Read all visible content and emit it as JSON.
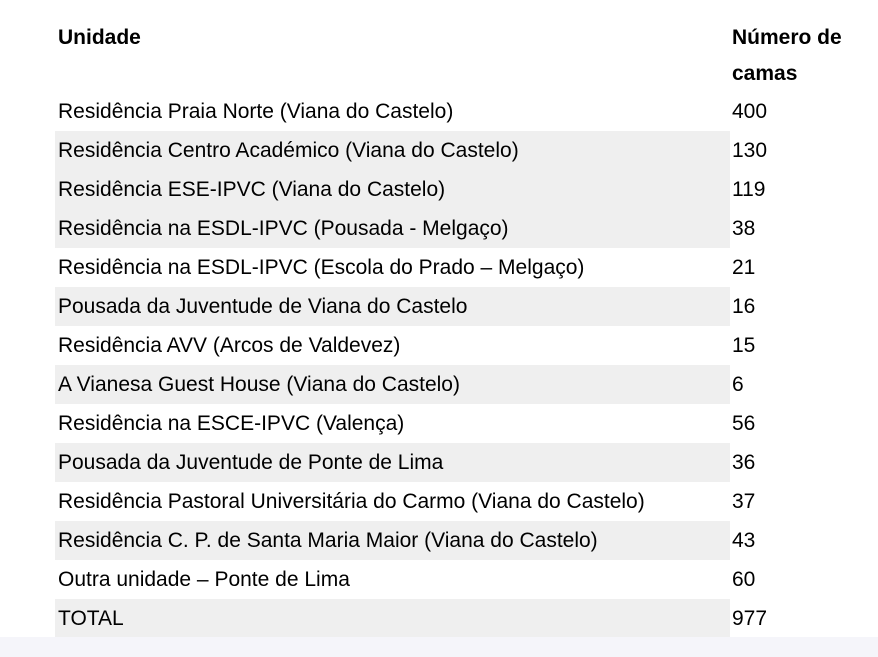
{
  "page": {
    "background_color": "#ffffff",
    "footer_strip_color": "#f5f5fa"
  },
  "table": {
    "headers": {
      "unit": "Unidade",
      "beds": "Número de camas"
    },
    "row_shade_color": "#efefef",
    "text_color": "#000000",
    "rows": [
      {
        "unit": "Residência Praia Norte (Viana do Castelo)",
        "beds": "400",
        "shaded": false
      },
      {
        "unit": "Residência Centro Académico (Viana do Castelo)",
        "beds": "130",
        "shaded": true
      },
      {
        "unit": "Residência ESE-IPVC (Viana do Castelo)",
        "beds": "119",
        "shaded": true
      },
      {
        "unit": "Residência na ESDL-IPVC (Pousada - Melgaço)",
        "beds": "38",
        "shaded": true
      },
      {
        "unit": "Residência na ESDL-IPVC (Escola do Prado – Melgaço)",
        "beds": "21",
        "shaded": false
      },
      {
        "unit": "Pousada da Juventude de Viana do Castelo",
        "beds": "16",
        "shaded": true
      },
      {
        "unit": "Residência AVV (Arcos de Valdevez)",
        "beds": "15",
        "shaded": false
      },
      {
        "unit": "A Vianesa Guest House (Viana do Castelo)",
        "beds": "6",
        "shaded": true
      },
      {
        "unit": "Residência na ESCE-IPVC (Valença)",
        "beds": "56",
        "shaded": false
      },
      {
        "unit": "Pousada da Juventude de Ponte de Lima",
        "beds": "36",
        "shaded": true
      },
      {
        "unit": "Residência Pastoral Universitária do Carmo (Viana do Castelo)",
        "beds": "37",
        "shaded": false
      },
      {
        "unit": "Residência C. P. de Santa Maria Maior (Viana do Castelo)",
        "beds": "43",
        "shaded": true
      },
      {
        "unit": "Outra unidade – Ponte de Lima",
        "beds": "60",
        "shaded": false
      },
      {
        "unit": "TOTAL",
        "beds": "977",
        "shaded": true
      }
    ]
  }
}
